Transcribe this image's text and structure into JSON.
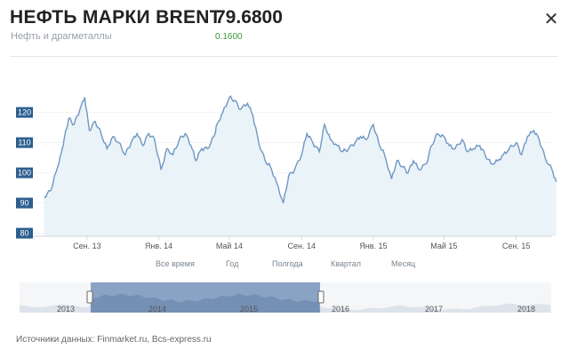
{
  "header": {
    "title": "НЕФТЬ МАРКИ BRENT",
    "price": "79.6800",
    "subtitle": "Нефть и драгметаллы",
    "change": "0.1600",
    "close_symbol": "✕"
  },
  "ranges": [
    "Все время",
    "Год",
    "Полгода",
    "Квартал",
    "Месяц"
  ],
  "navigator": {
    "years": [
      "2013",
      "2014",
      "2015",
      "2016",
      "2017",
      "2018"
    ]
  },
  "footer": {
    "sources": "Источники данных: Finmarket.ru, Bcs-express.ru"
  },
  "colors": {
    "line": "#6f97c4",
    "area": "#eaf3f8",
    "axis_badge": "#2d5f8f",
    "navigator_selected": "#8aa3c4",
    "change_positive": "#3a9a3a"
  },
  "chart_data": {
    "type": "line",
    "title": "",
    "xlabel": "",
    "ylabel": "",
    "ylim": [
      79,
      129
    ],
    "y_ticks": [
      80,
      90,
      100,
      110,
      120
    ],
    "x_ticks": [
      "Сен. 13",
      "Янв. 14",
      "Май 14",
      "Сен. 14",
      "Янв. 15",
      "Май 15",
      "Сен. 15"
    ],
    "x_range": [
      "2013-06",
      "2015-11"
    ],
    "series": [
      {
        "x": [
          "2013-06-20",
          "2013-07-01",
          "2013-07-10",
          "2013-07-20",
          "2013-07-25",
          "2013-08-01",
          "2013-08-10",
          "2013-08-20",
          "2013-08-28",
          "2013-09-05",
          "2013-09-15",
          "2013-09-25",
          "2013-10-05",
          "2013-10-15",
          "2013-10-25",
          "2013-11-05",
          "2013-11-15",
          "2013-11-25",
          "2013-12-05",
          "2013-12-15",
          "2013-12-25",
          "2014-01-05",
          "2014-01-15",
          "2014-01-25",
          "2014-02-05",
          "2014-02-15",
          "2014-02-25",
          "2014-03-05",
          "2014-03-15",
          "2014-03-25",
          "2014-04-05",
          "2014-04-10",
          "2014-04-20",
          "2014-05-01",
          "2014-05-10",
          "2014-05-20",
          "2014-06-01",
          "2014-06-10",
          "2014-06-20",
          "2014-07-01",
          "2014-07-10",
          "2014-07-20",
          "2014-08-01",
          "2014-08-10",
          "2014-08-20",
          "2014-09-01",
          "2014-09-10",
          "2014-09-20",
          "2014-10-01",
          "2014-10-10",
          "2014-10-20",
          "2014-11-01",
          "2014-11-10",
          "2014-11-20",
          "2014-12-01",
          "2014-12-10",
          "2014-12-20",
          "2015-01-01",
          "2015-01-10",
          "2015-01-20",
          "2015-02-01",
          "2015-02-10",
          "2015-02-20",
          "2015-03-01",
          "2015-03-10",
          "2015-03-20",
          "2015-04-01",
          "2015-04-10",
          "2015-04-20",
          "2015-05-01",
          "2015-05-10",
          "2015-05-20",
          "2015-06-01",
          "2015-06-10",
          "2015-06-20",
          "2015-07-01",
          "2015-07-10",
          "2015-07-20",
          "2015-08-01",
          "2015-08-10",
          "2015-08-20",
          "2015-09-01",
          "2015-09-10",
          "2015-09-20",
          "2015-10-01",
          "2015-10-10",
          "2015-10-20",
          "2015-11-01",
          "2015-11-08"
        ],
        "values": [
          92,
          94,
          100,
          107,
          112,
          118,
          116,
          121,
          125,
          114,
          117,
          113,
          108,
          112,
          110,
          106,
          110,
          113,
          109,
          113,
          111,
          101,
          108,
          106,
          111,
          113,
          109,
          104,
          108,
          108,
          112,
          116,
          120,
          125,
          124,
          121,
          123,
          119,
          110,
          104,
          102,
          97,
          90,
          99,
          101,
          106,
          113,
          110,
          107,
          116,
          111,
          109,
          107,
          108,
          110,
          112,
          111,
          116,
          110,
          106,
          98,
          104,
          102,
          100,
          104,
          101,
          103,
          109,
          113,
          112,
          109,
          108,
          111,
          107,
          108,
          109,
          106,
          103,
          104,
          106,
          108,
          110,
          106,
          112,
          114,
          111,
          105,
          101,
          97
        ]
      }
    ]
  }
}
